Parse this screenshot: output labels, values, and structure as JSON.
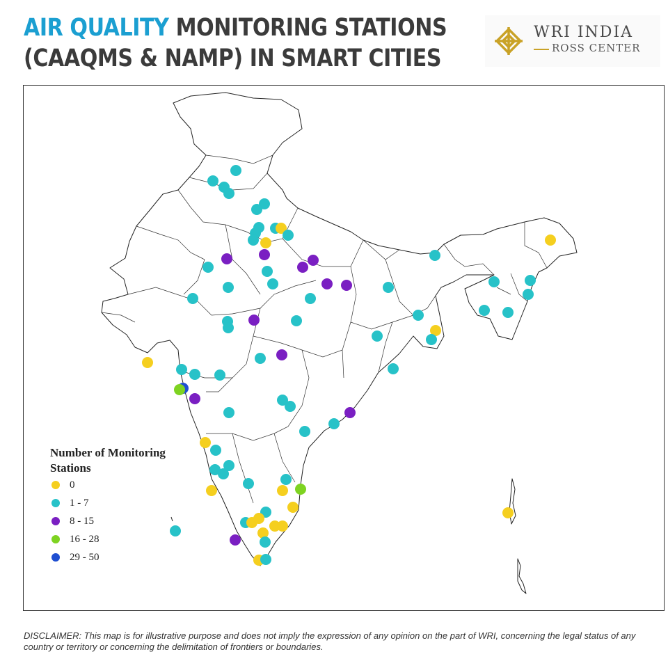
{
  "header": {
    "title_accent": "AIR QUALITY",
    "title_rest": "MONITORING STATIONS",
    "title_line2": "(CAAQMS & NAMP) IN SMART CITIES"
  },
  "logo": {
    "main": "WRI INDIA",
    "sub": "ROSS CENTER",
    "color": "#c9a227"
  },
  "legend": {
    "title": "Number of Monitoring Stations",
    "items": [
      {
        "label": "0",
        "color": "#f5cf1f"
      },
      {
        "label": "1 - 7",
        "color": "#27c2c8"
      },
      {
        "label": "8 - 15",
        "color": "#7a1fc2"
      },
      {
        "label": "16 - 28",
        "color": "#7ed321"
      },
      {
        "label": "29 - 50",
        "color": "#1f4fd1"
      }
    ]
  },
  "disclaimer": "DISCLAIMER: This map is for illustrative purpose and does not imply the expression of any opinion on the part of WRI, concerning the legal status of any country or territory or concerning the delimitation of frontiers or boundaries."
}
